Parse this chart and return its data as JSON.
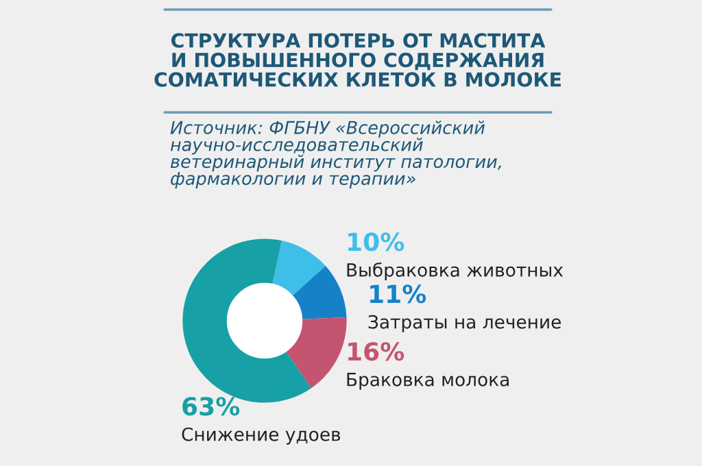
{
  "chart_data": {
    "type": "donut",
    "title": "СТРУКТУРА ПОТЕРЬ ОТ МАСТИТА\nИ ПОВЫШЕННОГО СОДЕРЖАНИЯ\nСОМАТИЧЕСКИХ КЛЕТОК В МОЛОКЕ",
    "subtitle": "Источник: ФГБНУ «Всероссийский\nнаучно-исследовательский\nветеринарный институт патологии,\nфармакологии и терапии»",
    "categories": [
      "Выбраковка животных",
      "Затраты на лечение",
      "Браковка молока",
      "Снижение удоев"
    ],
    "values": [
      10,
      11,
      16,
      63
    ],
    "colors": [
      "#3ebfea",
      "#1582c8",
      "#c4546f",
      "#17a0a5"
    ],
    "value_labels": [
      "10%",
      "11%",
      "16%",
      "63%"
    ],
    "legend": false
  }
}
